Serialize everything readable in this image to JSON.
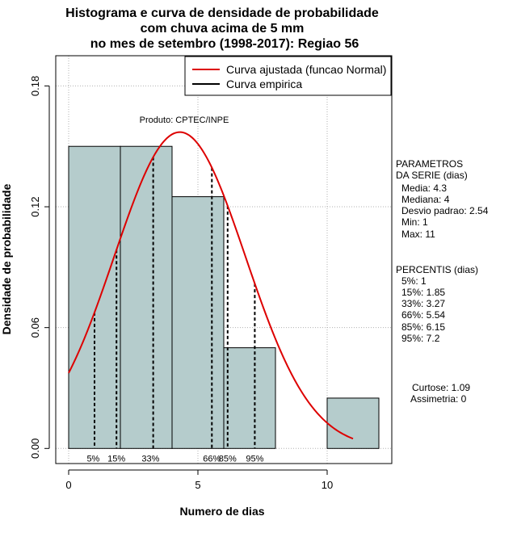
{
  "chart_data": {
    "type": "bar",
    "title_lines": [
      "Histograma e curva de densidade de probabilidade",
      "com chuva acima de 5 mm",
      "no mes de setembro (1998-2017): Regiao 56"
    ],
    "xlabel": "Numero de dias",
    "ylabel": "Densidade de probabilidade",
    "xlim": [
      -0.5,
      12.5
    ],
    "ylim": [
      -0.0075,
      0.195
    ],
    "x_ticks": [
      0,
      5,
      10
    ],
    "y_ticks": [
      0.0,
      0.06,
      0.12,
      0.18
    ],
    "y_tick_labels": [
      "0.00",
      "0.06",
      "0.12",
      "0.18"
    ],
    "grid": true,
    "bins": [
      {
        "start": 0,
        "end": 2,
        "value": 0.15
      },
      {
        "start": 2,
        "end": 4,
        "value": 0.15
      },
      {
        "start": 4,
        "end": 6,
        "value": 0.125
      },
      {
        "start": 6,
        "end": 8,
        "value": 0.05
      },
      {
        "start": 8,
        "end": 10,
        "value": 0.0
      },
      {
        "start": 10,
        "end": 12,
        "value": 0.025
      }
    ],
    "bar_color": "#b5cccc",
    "curve": {
      "name": "Curva ajustada (funcao Normal)",
      "color": "#dd0000",
      "mean": 4.3,
      "sd": 2.54,
      "x_range": [
        0,
        11
      ]
    },
    "empirical": {
      "name": "Curva empirica",
      "color": "#000000"
    },
    "percentile_lines": [
      {
        "label": "5%",
        "x": 1.0
      },
      {
        "label": "15%",
        "x": 1.85
      },
      {
        "label": "33%",
        "x": 3.27
      },
      {
        "label": "66%",
        "x": 5.54
      },
      {
        "label": "85%",
        "x": 6.15
      },
      {
        "label": "95%",
        "x": 7.2
      }
    ],
    "legend_position": "top-right",
    "annotation": "Produto: CPTEC/INPE"
  },
  "side_panel": {
    "parametros_title": [
      "PARAMETROS",
      "DA SERIE (dias)"
    ],
    "parametros": [
      "Media: 4.3",
      "Mediana: 4",
      "Desvio padrao: 2.54",
      "Min: 1",
      "Max: 11"
    ],
    "percentis_title": "PERCENTIS (dias)",
    "percentis": [
      "5%: 1",
      "15%: 1.85",
      "33%: 3.27",
      "66%: 5.54",
      "85%: 6.15",
      "95%: 7.2"
    ],
    "curtose": "Curtose: 1.09",
    "assimetria": "Assimetria: 0"
  }
}
